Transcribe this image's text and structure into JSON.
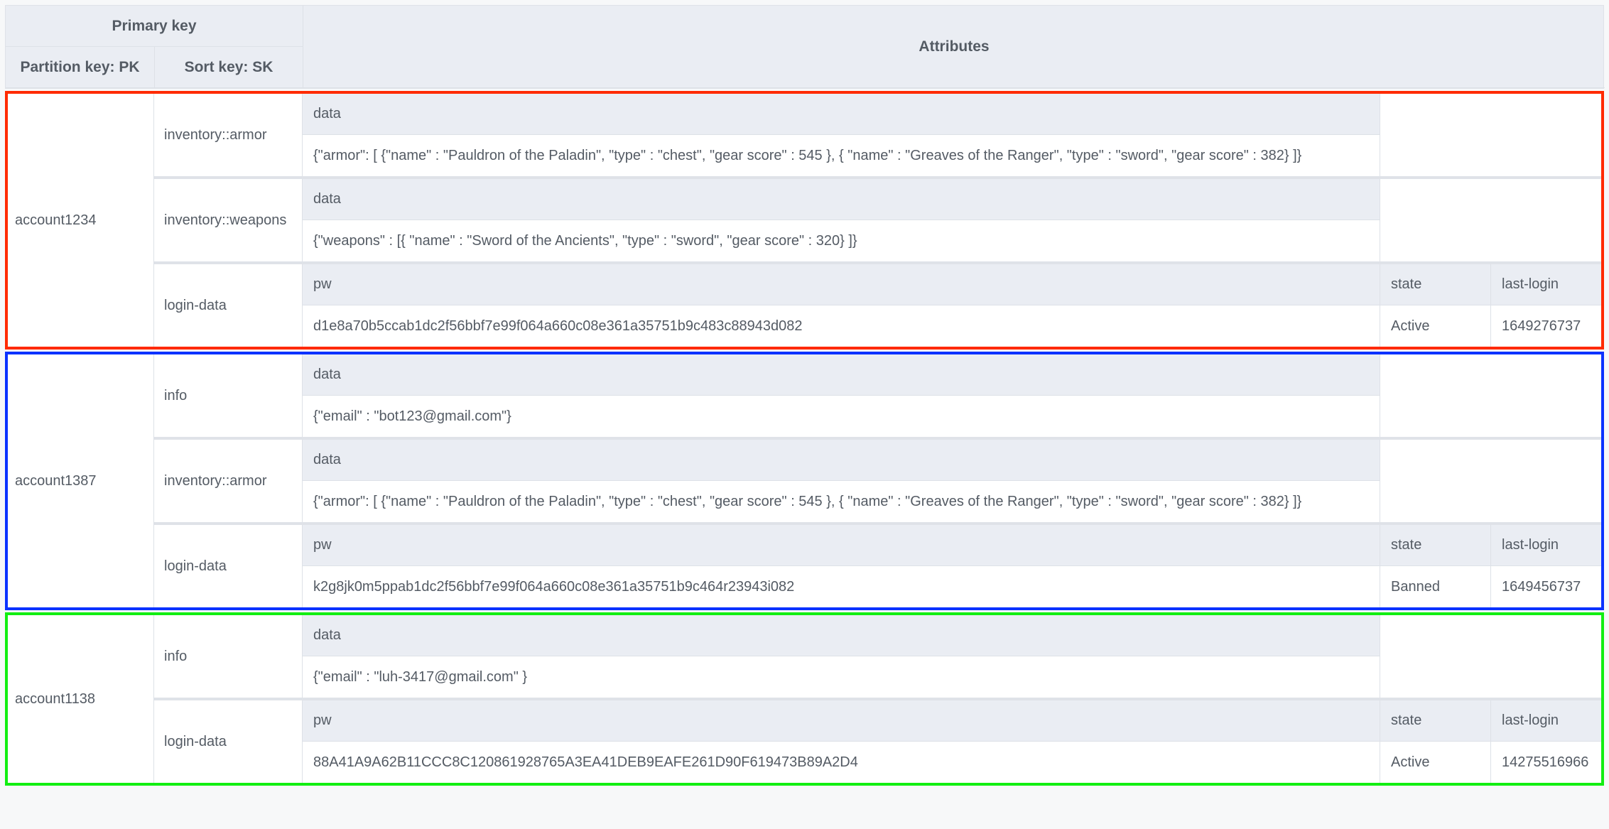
{
  "header": {
    "primary_key": "Primary key",
    "attributes": "Attributes",
    "partition_key": "Partition key: PK",
    "sort_key": "Sort key: SK"
  },
  "groups": [
    {
      "pk": "account1234",
      "border_color": "#ff2a00",
      "items": [
        {
          "sk": "inventory::armor",
          "attributes": [
            {
              "name": "data",
              "value": "{\"armor\": [ {\"name\" : \"Pauldron of the Paladin\", \"type\" : \"chest\", \"gear score\" : 545 }, { \"name\" : \"Greaves of the Ranger\", \"type\" : \"sword\", \"gear score\" : 382} ]}"
            }
          ]
        },
        {
          "sk": "inventory::weapons",
          "attributes": [
            {
              "name": "data",
              "value": "{\"weapons\" : [{ \"name\" : \"Sword of the Ancients\", \"type\" : \"sword\", \"gear score\" : 320} ]}"
            }
          ]
        },
        {
          "sk": "login-data",
          "attributes": [
            {
              "name": "pw",
              "value": "d1e8a70b5ccab1dc2f56bbf7e99f064a660c08e361a35751b9c483c88943d082"
            },
            {
              "name": "state",
              "value": "Active"
            },
            {
              "name": "last-login",
              "value": "1649276737"
            }
          ]
        }
      ]
    },
    {
      "pk": "account1387",
      "border_color": "#0a32ff",
      "items": [
        {
          "sk": "info",
          "attributes": [
            {
              "name": "data",
              "value": "{\"email\" : \"bot123@gmail.com\"}"
            }
          ]
        },
        {
          "sk": "inventory::armor",
          "attributes": [
            {
              "name": "data",
              "value": "{\"armor\": [ {\"name\" : \"Pauldron of the Paladin\", \"type\" : \"chest\", \"gear score\" : 545 }, { \"name\" : \"Greaves of the Ranger\", \"type\" : \"sword\", \"gear score\" : 382} ]}"
            }
          ]
        },
        {
          "sk": "login-data",
          "attributes": [
            {
              "name": "pw",
              "value": "k2g8jk0m5ppab1dc2f56bbf7e99f064a660c08e361a35751b9c464r23943i082"
            },
            {
              "name": "state",
              "value": "Banned"
            },
            {
              "name": "last-login",
              "value": "1649456737"
            }
          ]
        }
      ]
    },
    {
      "pk": "account1138",
      "border_color": "#12ee12",
      "items": [
        {
          "sk": "info",
          "attributes": [
            {
              "name": "data",
              "value": "{\"email\" : \"luh-3417@gmail.com\" }"
            }
          ]
        },
        {
          "sk": "login-data",
          "attributes": [
            {
              "name": "pw",
              "value": "88A41A9A62B11CCC8C120861928765A3EA41DEB9EAFE261D90F619473B89A2D4"
            },
            {
              "name": "state",
              "value": "Active"
            },
            {
              "name": "last-login",
              "value": "14275516966"
            }
          ]
        }
      ]
    }
  ]
}
